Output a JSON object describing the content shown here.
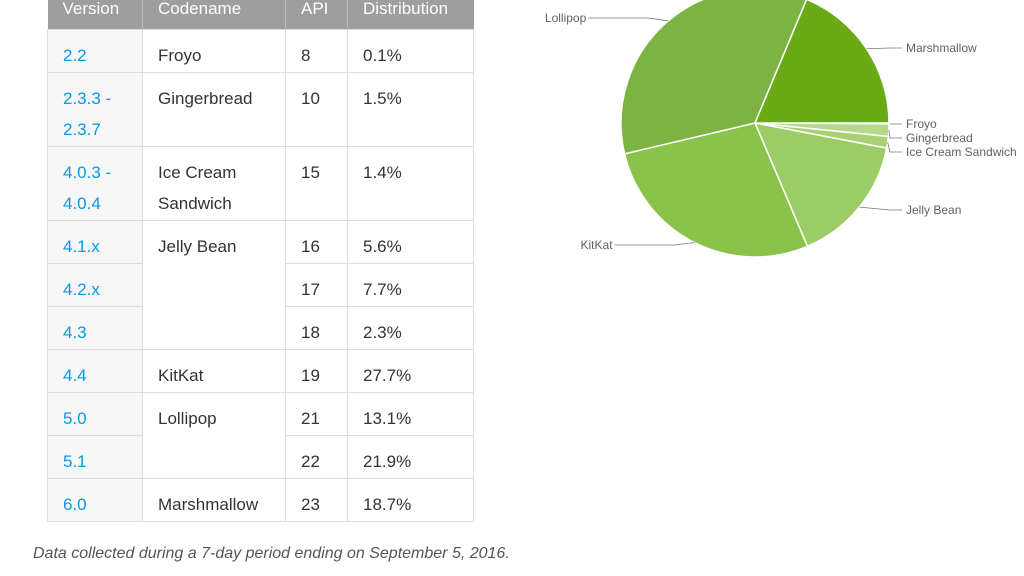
{
  "table": {
    "headers": [
      "Version",
      "Codename",
      "API",
      "Distribution"
    ],
    "rows": [
      {
        "version": "2.2",
        "codename": "Froyo",
        "api": "8",
        "distribution": "0.1%"
      },
      {
        "version": "2.3.3 - 2.3.7",
        "codename": "Gingerbread",
        "api": "10",
        "distribution": "1.5%"
      },
      {
        "version": "4.0.3 - 4.0.4",
        "codename": "Ice Cream Sandwich",
        "api": "15",
        "distribution": "1.4%"
      },
      {
        "version": "4.1.x",
        "codename": "Jelly Bean",
        "api": "16",
        "distribution": "5.6%"
      },
      {
        "version": "4.2.x",
        "codename": "",
        "api": "17",
        "distribution": "7.7%"
      },
      {
        "version": "4.3",
        "codename": "",
        "api": "18",
        "distribution": "2.3%"
      },
      {
        "version": "4.4",
        "codename": "KitKat",
        "api": "19",
        "distribution": "27.7%"
      },
      {
        "version": "5.0",
        "codename": "Lollipop",
        "api": "21",
        "distribution": "13.1%"
      },
      {
        "version": "5.1",
        "codename": "",
        "api": "22",
        "distribution": "21.9%"
      },
      {
        "version": "6.0",
        "codename": "Marshmallow",
        "api": "23",
        "distribution": "18.7%"
      }
    ]
  },
  "footnote": "Data collected during a 7-day period ending on September 5, 2016.",
  "chart_data": {
    "type": "pie",
    "title": "",
    "slices": [
      {
        "label": "Froyo",
        "value": 0.1,
        "color": "#c5e1a5"
      },
      {
        "label": "Gingerbread",
        "value": 1.5,
        "color": "#b5d98a"
      },
      {
        "label": "Ice Cream Sandwich",
        "value": 1.4,
        "color": "#a9d16f"
      },
      {
        "label": "Jelly Bean",
        "value": 15.6,
        "color": "#9ccc65"
      },
      {
        "label": "KitKat",
        "value": 27.7,
        "color": "#8bc34a"
      },
      {
        "label": "Lollipop",
        "value": 35.0,
        "color": "#7cb342"
      },
      {
        "label": "Marshmallow",
        "value": 18.7,
        "color": "#6aaa16"
      }
    ],
    "legend": "callout labels around pie"
  },
  "colors": {
    "header_bg": "#9e9e9e",
    "version_link": "#039be5",
    "pie_border": "#ffffff"
  }
}
